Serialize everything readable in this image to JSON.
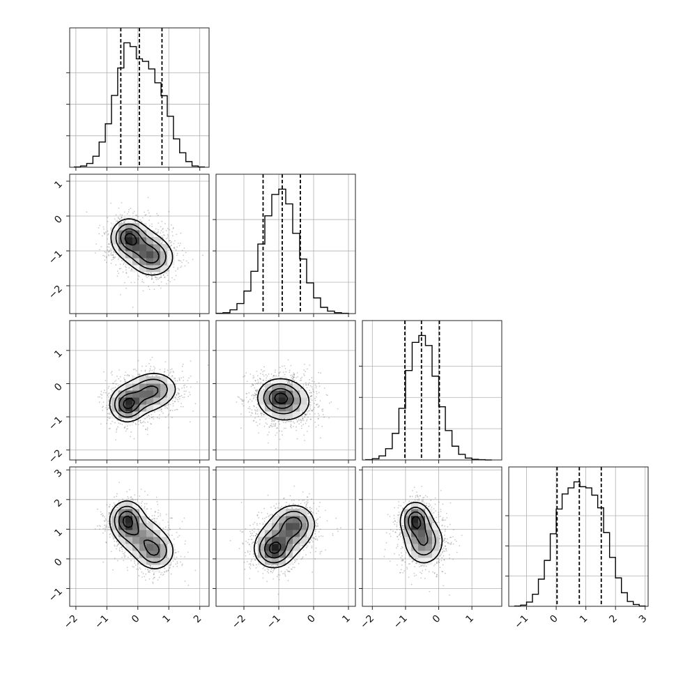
{
  "chart_data": {
    "type": "corner",
    "dimensions": 4,
    "axis_ranges": [
      [
        -2.2,
        2.3
      ],
      [
        -2.8,
        1.2
      ],
      [
        -2.3,
        1.9
      ],
      [
        -1.6,
        3.1
      ]
    ],
    "ticks": [
      [
        -2,
        -1,
        0,
        1,
        2
      ],
      [
        -2,
        -1,
        0,
        1
      ],
      [
        -2,
        -1,
        0,
        1
      ],
      [
        -1,
        0,
        1,
        2,
        3
      ]
    ],
    "tick_labels": [
      [
        "−2",
        "−1",
        "0",
        "1",
        "2"
      ],
      [
        "−2",
        "−1",
        "0",
        "1"
      ],
      [
        "−2",
        "−1",
        "0",
        "1"
      ],
      [
        "−1",
        "0",
        "1",
        "2",
        "3"
      ]
    ],
    "grid": true,
    "quantiles_shown": [
      0.16,
      0.5,
      0.84
    ],
    "marginals": [
      {
        "bin_centers": [
          -1.95,
          -1.75,
          -1.55,
          -1.35,
          -1.15,
          -0.95,
          -0.75,
          -0.55,
          -0.35,
          -0.15,
          0.05,
          0.25,
          0.45,
          0.65,
          0.85,
          1.05,
          1.25,
          1.45,
          1.65,
          1.85,
          2.05
        ],
        "counts": [
          1,
          4,
          12,
          35,
          80,
          138,
          228,
          315,
          395,
          383,
          344,
          336,
          312,
          268,
          227,
          162,
          90,
          46,
          18,
          4,
          1
        ],
        "quantiles": [
          -0.55,
          0.05,
          0.78
        ]
      },
      {
        "bin_centers": [
          -2.7,
          -2.5,
          -2.3,
          -2.1,
          -1.9,
          -1.7,
          -1.5,
          -1.3,
          -1.1,
          -0.9,
          -0.7,
          -0.5,
          -0.3,
          -0.1,
          0.1,
          0.3,
          0.5,
          0.7,
          0.9
        ],
        "counts": [
          1,
          3,
          12,
          32,
          72,
          135,
          222,
          312,
          380,
          397,
          350,
          256,
          174,
          98,
          50,
          20,
          8,
          3,
          1
        ],
        "quantiles": [
          -1.45,
          -0.9,
          -0.38
        ]
      },
      {
        "bin_centers": [
          -2.1,
          -1.9,
          -1.7,
          -1.5,
          -1.3,
          -1.1,
          -0.9,
          -0.7,
          -0.5,
          -0.3,
          -0.1,
          0.1,
          0.3,
          0.5,
          0.7,
          0.9,
          1.1,
          1.3,
          1.5
        ],
        "counts": [
          1,
          4,
          13,
          36,
          85,
          165,
          286,
          376,
          398,
          366,
          268,
          170,
          94,
          44,
          18,
          6,
          2,
          1,
          0
        ],
        "quantiles": [
          -1.02,
          -0.52,
          0.02
        ]
      },
      {
        "bin_centers": [
          -1.3,
          -1.1,
          -0.9,
          -0.7,
          -0.5,
          -0.3,
          -0.1,
          0.1,
          0.3,
          0.5,
          0.7,
          0.9,
          1.1,
          1.3,
          1.5,
          1.7,
          1.9,
          2.1,
          2.3,
          2.5,
          2.7,
          2.9
        ],
        "counts": [
          1,
          4,
          14,
          40,
          90,
          152,
          240,
          322,
          372,
          392,
          412,
          396,
          392,
          368,
          326,
          244,
          162,
          94,
          45,
          16,
          6,
          1
        ],
        "quantiles": [
          0.03,
          0.78,
          1.52
        ]
      }
    ],
    "joint": [
      {
        "x_dim": 0,
        "y_dim": 1,
        "modes": [
          {
            "x": -0.3,
            "y": -0.6,
            "sx": 0.28,
            "sy": 0.26,
            "w": 1.0
          },
          {
            "x": 0.5,
            "y": -1.2,
            "sx": 0.34,
            "sy": 0.27,
            "w": 0.72
          },
          {
            "x": 0.1,
            "y": -0.9,
            "sx": 0.38,
            "sy": 0.3,
            "w": 0.55
          }
        ]
      },
      {
        "x_dim": 0,
        "y_dim": 2,
        "modes": [
          {
            "x": -0.35,
            "y": -0.65,
            "sx": 0.27,
            "sy": 0.25,
            "w": 1.0
          },
          {
            "x": 0.55,
            "y": -0.15,
            "sx": 0.38,
            "sy": 0.26,
            "w": 0.6
          },
          {
            "x": 0.1,
            "y": -0.4,
            "sx": 0.42,
            "sy": 0.28,
            "w": 0.5
          }
        ]
      },
      {
        "x_dim": 1,
        "y_dim": 2,
        "modes": [
          {
            "x": -1.0,
            "y": -0.4,
            "sx": 0.3,
            "sy": 0.27,
            "w": 1.0
          },
          {
            "x": -0.75,
            "y": -0.55,
            "sx": 0.38,
            "sy": 0.32,
            "w": 0.6
          }
        ]
      },
      {
        "x_dim": 0,
        "y_dim": 3,
        "modes": [
          {
            "x": -0.35,
            "y": 1.3,
            "sx": 0.27,
            "sy": 0.32,
            "w": 1.0
          },
          {
            "x": 0.55,
            "y": 0.25,
            "sx": 0.32,
            "sy": 0.32,
            "w": 0.65
          },
          {
            "x": 0.1,
            "y": 0.75,
            "sx": 0.38,
            "sy": 0.35,
            "w": 0.5
          }
        ]
      },
      {
        "x_dim": 1,
        "y_dim": 3,
        "modes": [
          {
            "x": -1.15,
            "y": 0.3,
            "sx": 0.27,
            "sy": 0.3,
            "w": 1.0
          },
          {
            "x": -0.55,
            "y": 1.2,
            "sx": 0.3,
            "sy": 0.32,
            "w": 0.78
          },
          {
            "x": -0.85,
            "y": 0.75,
            "sx": 0.38,
            "sy": 0.38,
            "w": 0.5
          }
        ]
      },
      {
        "x_dim": 2,
        "y_dim": 3,
        "modes": [
          {
            "x": -0.7,
            "y": 1.3,
            "sx": 0.22,
            "sy": 0.3,
            "w": 1.0
          },
          {
            "x": -0.45,
            "y": 0.6,
            "sx": 0.3,
            "sy": 0.4,
            "w": 0.7
          }
        ]
      }
    ],
    "density_levels": [
      0.12,
      0.32,
      0.6,
      0.86
    ],
    "density_grid_bins": 20,
    "scatter_points_per_panel": 1600
  }
}
